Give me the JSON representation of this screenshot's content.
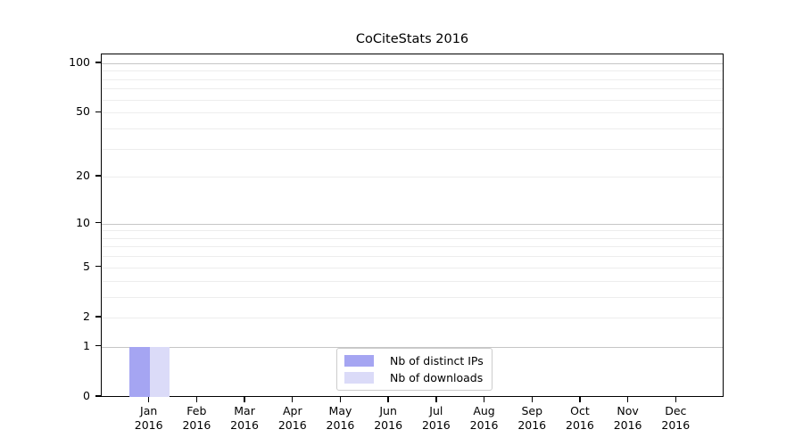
{
  "chart_data": {
    "type": "bar",
    "title": "CoCiteStats 2016",
    "categories": [
      {
        "month": "Jan",
        "year": "2016"
      },
      {
        "month": "Feb",
        "year": "2016"
      },
      {
        "month": "Mar",
        "year": "2016"
      },
      {
        "month": "Apr",
        "year": "2016"
      },
      {
        "month": "May",
        "year": "2016"
      },
      {
        "month": "Jun",
        "year": "2016"
      },
      {
        "month": "Jul",
        "year": "2016"
      },
      {
        "month": "Aug",
        "year": "2016"
      },
      {
        "month": "Sep",
        "year": "2016"
      },
      {
        "month": "Oct",
        "year": "2016"
      },
      {
        "month": "Nov",
        "year": "2016"
      },
      {
        "month": "Dec",
        "year": "2016"
      }
    ],
    "series": [
      {
        "name": "Nb of distinct IPs",
        "color": "#a5a5f2",
        "values": [
          1,
          0,
          0,
          0,
          0,
          0,
          0,
          0,
          0,
          0,
          0,
          0
        ]
      },
      {
        "name": "Nb of downloads",
        "color": "#dbdbf8",
        "values": [
          1,
          0,
          0,
          0,
          0,
          0,
          0,
          0,
          0,
          0,
          0,
          0
        ]
      }
    ],
    "xlabel": "",
    "ylabel": "",
    "yscale": "log1p",
    "ylim": [
      0,
      113
    ],
    "yticks": [
      0,
      1,
      2,
      5,
      10,
      20,
      50,
      100
    ],
    "major_gridlines": [
      1,
      10,
      100
    ],
    "minor_gridlines": [
      2,
      3,
      4,
      5,
      6,
      7,
      8,
      9,
      20,
      30,
      40,
      50,
      60,
      70,
      80,
      90
    ],
    "grid": true,
    "legend_position": "bottom-center",
    "colors": {
      "spine": "#000000",
      "major_grid": "#c6c6c6",
      "minor_grid": "#ededed",
      "text": "#000000",
      "background": "#ffffff"
    }
  }
}
